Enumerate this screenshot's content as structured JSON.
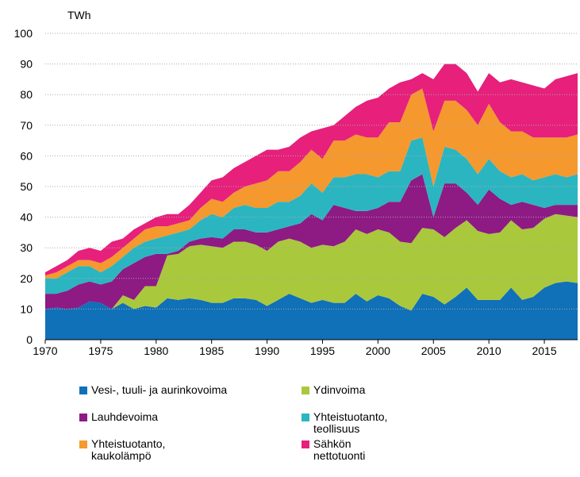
{
  "chart_data": {
    "type": "stacked_area",
    "ylabel": "TWh",
    "x": [
      1970,
      1971,
      1972,
      1973,
      1974,
      1975,
      1976,
      1977,
      1978,
      1979,
      1980,
      1981,
      1982,
      1983,
      1984,
      1985,
      1986,
      1987,
      1988,
      1989,
      1990,
      1991,
      1992,
      1993,
      1994,
      1995,
      1996,
      1997,
      1998,
      1999,
      2000,
      2001,
      2002,
      2003,
      2004,
      2005,
      2006,
      2007,
      2008,
      2009,
      2010,
      2011,
      2012,
      2013,
      2014,
      2015,
      2016,
      2017,
      2018
    ],
    "xlim": [
      1970,
      2018
    ],
    "xticks": [
      1970,
      1975,
      1980,
      1985,
      1990,
      1995,
      2000,
      2005,
      2010,
      2015
    ],
    "ylim": [
      0,
      100
    ],
    "yticks": [
      0,
      10,
      20,
      30,
      40,
      50,
      60,
      70,
      80,
      90,
      100
    ],
    "grid": true,
    "series": [
      {
        "name": "Vesi-, tuuli- ja aurinkovoima",
        "color": "#1070b8",
        "values": [
          10,
          10.5,
          10,
          10.5,
          12.5,
          12,
          10,
          12,
          10,
          11,
          10.5,
          13.5,
          13,
          13.5,
          13,
          12,
          12,
          13.5,
          13.5,
          13,
          11,
          13,
          15,
          13.5,
          12,
          13,
          12,
          12,
          15,
          12.5,
          14.5,
          13.5,
          11,
          9.5,
          15,
          14,
          11.5,
          14,
          17,
          13,
          13,
          13,
          17,
          13,
          14,
          17,
          18.5,
          19,
          18.5
        ]
      },
      {
        "name": "Ydinvoima",
        "color": "#a9c83c",
        "values": [
          0,
          0,
          0,
          0,
          0,
          0,
          0,
          2.5,
          3,
          6.5,
          7,
          14,
          15,
          17,
          18,
          18.5,
          18,
          18.5,
          18.5,
          18,
          18,
          19,
          18,
          18.5,
          18,
          18,
          18.5,
          20,
          21,
          22,
          21.5,
          21.5,
          21,
          22,
          21.5,
          22,
          22,
          22.5,
          22,
          22.5,
          21.5,
          22,
          22,
          23,
          22.5,
          22.5,
          22.5,
          21.5,
          21.5
        ]
      },
      {
        "name": "Lauhdevoima",
        "color": "#8e1a84",
        "values": [
          5,
          4.5,
          6,
          7.5,
          6.5,
          6,
          9,
          8.5,
          12,
          9.5,
          10.5,
          0.5,
          1,
          1.5,
          2,
          3,
          3,
          4,
          4,
          4,
          6,
          4,
          4,
          6,
          11,
          8,
          13.5,
          11,
          6,
          7.5,
          7,
          10,
          13,
          20.5,
          17.5,
          4,
          17.5,
          14.5,
          9,
          8.5,
          14.5,
          11,
          5,
          9,
          7.5,
          3.5,
          3,
          3.5,
          4
        ]
      },
      {
        "name": "Yhteistuotanto,\nteollisuus",
        "color": "#2bb5c0",
        "values": [
          5,
          5,
          6,
          6,
          5,
          4,
          5,
          4,
          5,
          5,
          5,
          6,
          6,
          4,
          6,
          7.5,
          7,
          7,
          8,
          8,
          8,
          9,
          8,
          9,
          10,
          9,
          9,
          10,
          12,
          12,
          10,
          10,
          10,
          13,
          12,
          10,
          12,
          11,
          11,
          10,
          10,
          9,
          9,
          9,
          8,
          10,
          10,
          9,
          10
        ]
      },
      {
        "name": "Yhteistuotanto,\nkaukolämpö",
        "color": "#f5982e",
        "values": [
          1,
          2,
          2,
          2,
          2,
          3,
          3,
          3,
          3,
          4,
          4,
          3,
          3,
          3,
          4,
          5,
          5,
          5,
          6,
          8,
          9,
          10,
          10,
          11,
          11,
          11,
          12,
          12,
          13,
          12,
          13,
          16,
          16,
          15,
          16,
          18,
          15,
          16,
          16,
          16,
          18,
          16,
          15,
          14,
          14,
          13,
          12,
          13,
          13
        ]
      },
      {
        "name": "Sähkön\nnettotuonti",
        "color": "#e6207b",
        "values": [
          1,
          2,
          2,
          3,
          4,
          4,
          5,
          3,
          3,
          2,
          3,
          4,
          3,
          5,
          5,
          6,
          8,
          8,
          8,
          9,
          10,
          7,
          8,
          8,
          6,
          10,
          5,
          8,
          9,
          12,
          13,
          11,
          13,
          5,
          5,
          17,
          12,
          12,
          12,
          11,
          10,
          13,
          17,
          16,
          17,
          16,
          19,
          20,
          20
        ]
      }
    ]
  }
}
